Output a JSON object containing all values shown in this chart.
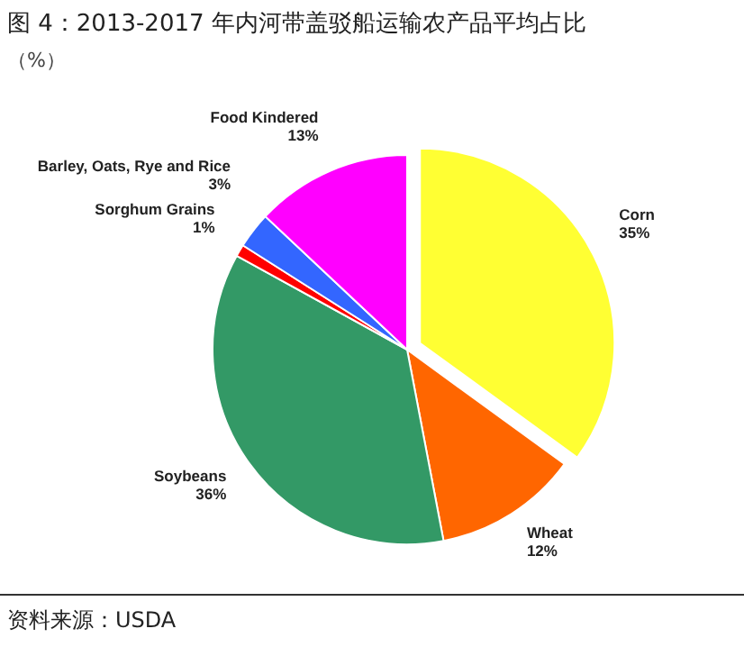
{
  "chart_data": {
    "type": "pie",
    "title": "图 4：2013-2017 年内河带盖驳船运输农产品平均占比",
    "subtitle": "（%）",
    "categories": [
      "Corn",
      "Wheat",
      "Soybeans",
      "Sorghum Grains",
      "Barley, Oats, Rye and Rice",
      "Food Kindered"
    ],
    "values": [
      35,
      12,
      36,
      1,
      3,
      13
    ],
    "value_labels": [
      "35%",
      "12%",
      "36%",
      "1%",
      "3%",
      "13%"
    ],
    "colors": [
      "#ffff33",
      "#ff6600",
      "#339966",
      "#ff0000",
      "#3366ff",
      "#ff00ff"
    ],
    "annotations": [
      "资料来源：USDA"
    ]
  }
}
